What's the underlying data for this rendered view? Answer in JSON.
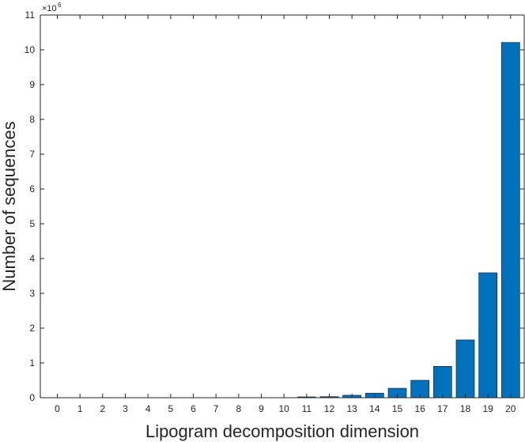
{
  "chart_data": {
    "type": "bar",
    "categories": [
      "0",
      "1",
      "2",
      "3",
      "4",
      "5",
      "6",
      "7",
      "8",
      "9",
      "10",
      "11",
      "12",
      "13",
      "14",
      "15",
      "16",
      "17",
      "18",
      "19",
      "20"
    ],
    "values": [
      0,
      0,
      0,
      0,
      0,
      0,
      0,
      0,
      0,
      0,
      0,
      0.01,
      0.03,
      0.07,
      0.13,
      0.27,
      0.5,
      0.9,
      1.66,
      3.59,
      10.21
    ],
    "value_multiplier_label": "×10",
    "value_multiplier_exponent": "6",
    "xlabel": "Lipogram decomposition dimension",
    "ylabel": "Number of sequences",
    "ylim": [
      0,
      11
    ],
    "yticks": [
      "0",
      "1",
      "2",
      "3",
      "4",
      "5",
      "6",
      "7",
      "8",
      "9",
      "10",
      "11"
    ],
    "grid": false,
    "bar_color": "#0072BD"
  }
}
